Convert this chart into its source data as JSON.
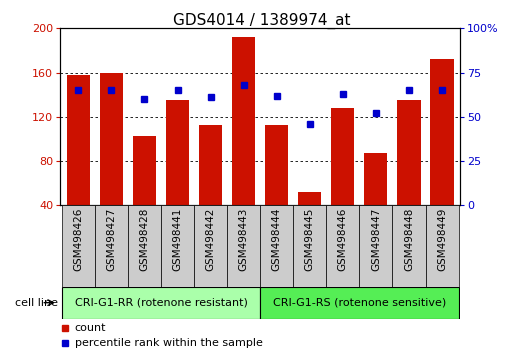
{
  "title": "GDS4014 / 1389974_at",
  "samples": [
    "GSM498426",
    "GSM498427",
    "GSM498428",
    "GSM498441",
    "GSM498442",
    "GSM498443",
    "GSM498444",
    "GSM498445",
    "GSM498446",
    "GSM498447",
    "GSM498448",
    "GSM498449"
  ],
  "counts": [
    158,
    160,
    103,
    135,
    113,
    192,
    113,
    52,
    128,
    87,
    135,
    172
  ],
  "percentiles": [
    65,
    65,
    60,
    65,
    61,
    68,
    62,
    46,
    63,
    52,
    65,
    65
  ],
  "group1_label": "CRI-G1-RR (rotenone resistant)",
  "group2_label": "CRI-G1-RS (rotenone sensitive)",
  "group1_count": 6,
  "group2_count": 6,
  "cell_line_label": "cell line",
  "legend_count": "count",
  "legend_percentile": "percentile rank within the sample",
  "bar_color": "#cc1100",
  "dot_color": "#0000cc",
  "group1_bg": "#aaffaa",
  "group2_bg": "#55ee55",
  "tick_bg": "#cccccc",
  "plot_bg": "#ffffff",
  "ylim_left": [
    40,
    200
  ],
  "ylim_right": [
    0,
    100
  ],
  "yticks_left": [
    40,
    80,
    120,
    160,
    200
  ],
  "yticks_right": [
    0,
    25,
    50,
    75,
    100
  ],
  "title_fontsize": 11,
  "axis_fontsize": 8,
  "label_fontsize": 8,
  "bar_bottom": 40
}
